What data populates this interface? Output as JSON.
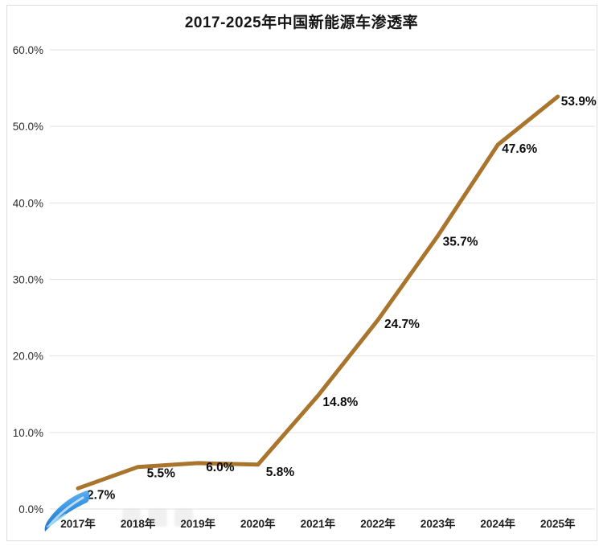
{
  "title": "2017-2025年中国新能源车渗透率",
  "chart_data": {
    "type": "line",
    "title": "2017-2025年中国新能源车渗透率",
    "categories": [
      "2017年",
      "2018年",
      "2019年",
      "2020年",
      "2021年",
      "2022年",
      "2023年",
      "2024年",
      "2025年"
    ],
    "values": [
      2.7,
      5.5,
      6.0,
      5.8,
      14.8,
      24.7,
      35.7,
      47.6,
      53.9
    ],
    "point_labels": [
      "2.7%",
      "5.5%",
      "6.0%",
      "5.8%",
      "14.8%",
      "24.7%",
      "35.7%",
      "47.6%",
      "53.9%"
    ],
    "xlabel": "",
    "ylabel": "",
    "ylim": [
      0,
      60
    ],
    "ytick_labels": [
      "0.0%",
      "10.0%",
      "20.0%",
      "30.0%",
      "40.0%",
      "50.0%",
      "60.0%"
    ],
    "grid": true,
    "legend": "none",
    "line_color": "#a9742b",
    "grid_color": "#e2e2e2",
    "text_color": "#1f1f1f"
  },
  "watermark": {
    "logo_icon": "blue-swoosh-icon",
    "logo_colors": [
      "#7ec3f7",
      "#1565c0"
    ]
  }
}
